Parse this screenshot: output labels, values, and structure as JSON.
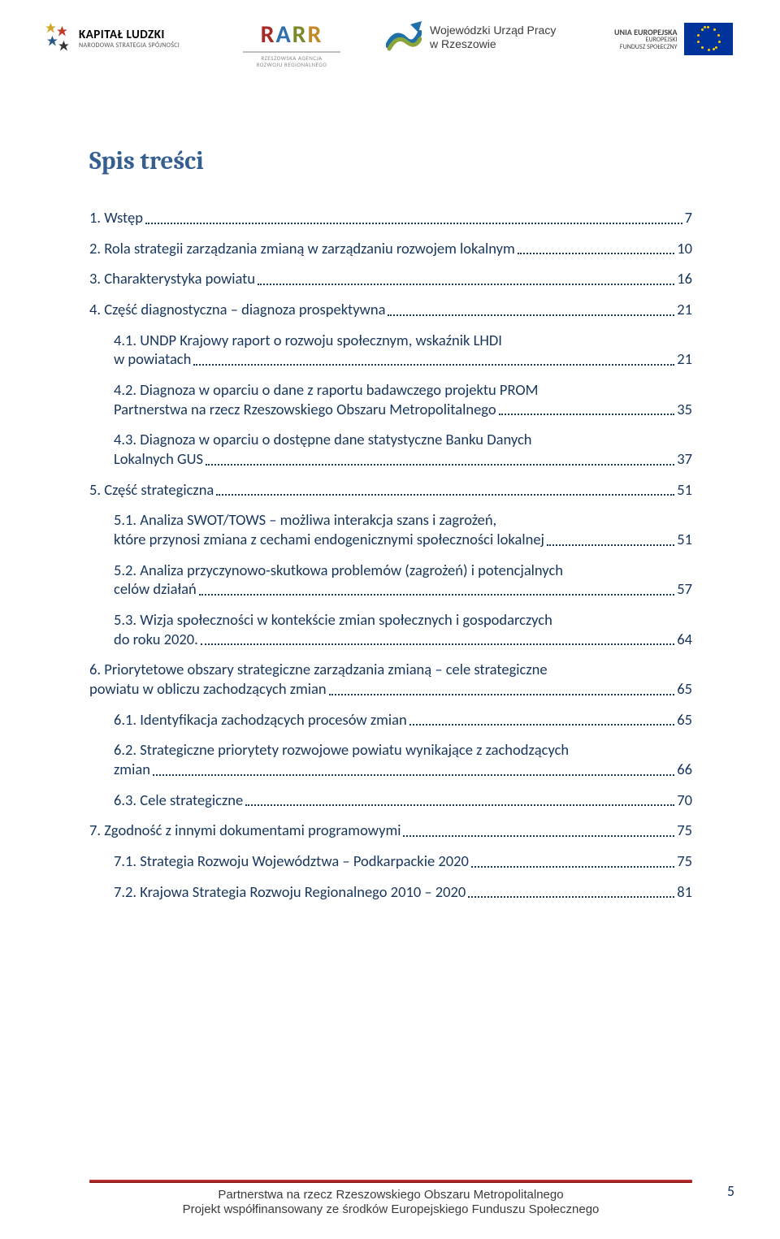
{
  "header": {
    "kapitalLudzki": {
      "line1": "KAPITAŁ LUDZKI",
      "line2": "NARODOWA STRATEGIA SPÓJNOŚCI"
    },
    "rarr": {
      "mark": "RARR",
      "sub1": "RZESZOWSKA AGENCJA",
      "sub2": "ROZWOJU REGIONALNEGO"
    },
    "wup": {
      "line1": "Wojewódzki Urząd Pracy",
      "line2": "w Rzeszowie"
    },
    "eu": {
      "line1": "UNIA EUROPEJSKA",
      "line2": "EUROPEJSKI",
      "line3": "FUNDUSZ SPOŁECZNY"
    }
  },
  "title": "Spis treści",
  "toc": [
    {
      "type": "single",
      "level": 0,
      "text": "1.   Wstęp",
      "page": "7"
    },
    {
      "type": "single",
      "level": 0,
      "text": "2.   Rola strategii zarządzania zmianą w zarządzaniu rozwojem lokalnym",
      "page": "10"
    },
    {
      "type": "single",
      "level": 0,
      "text": "3.   Charakterystyka powiatu",
      "page": "16"
    },
    {
      "type": "single",
      "level": 0,
      "text": "4.   Część diagnostyczna – diagnoza prospektywna",
      "page": "21"
    },
    {
      "type": "multi",
      "level": 1,
      "line1": "4.1.   UNDP Krajowy raport o rozwoju społecznym, wskaźnik LHDI",
      "line2": "w powiatach",
      "page": "21"
    },
    {
      "type": "multi",
      "level": 1,
      "line1": "4.2.   Diagnoza w oparciu o dane z raportu badawczego projektu PROM",
      "line2": "Partnerstwa na rzecz Rzeszowskiego Obszaru Metropolitalnego",
      "page": "35"
    },
    {
      "type": "multi",
      "level": 1,
      "line1": "4.3.   Diagnoza w oparciu o dostępne dane statystyczne Banku Danych",
      "line2": "Lokalnych GUS",
      "page": "37"
    },
    {
      "type": "single",
      "level": 0,
      "text": "5.   Część strategiczna",
      "page": "51"
    },
    {
      "type": "multi",
      "level": 1,
      "line1": "5.1.   Analiza SWOT/TOWS – możliwa interakcja szans  i zagrożeń,",
      "line2": "które przynosi zmiana z cechami endogenicznymi społeczności lokalnej",
      "page": "51"
    },
    {
      "type": "multi",
      "level": 1,
      "line1": "5.2.   Analiza przyczynowo-skutkowa problemów (zagrożeń) i potencjalnych",
      "line2": "celów działań",
      "page": "57"
    },
    {
      "type": "multi",
      "level": 1,
      "line1": "5.3.   Wizja społeczności w kontekście zmian społecznych i gospodarczych",
      "line2": "do roku 2020.",
      "page": "64"
    },
    {
      "type": "multi",
      "level": 0,
      "line1": "6.   Priorytetowe obszary strategiczne zarządzania zmianą – cele strategiczne",
      "line2": "powiatu w obliczu zachodzących zmian",
      "page": "65"
    },
    {
      "type": "single",
      "level": 1,
      "text": "6.1.   Identyfikacja zachodzących procesów zmian",
      "page": "65"
    },
    {
      "type": "multi",
      "level": 1,
      "line1": "6.2.   Strategiczne priorytety rozwojowe powiatu wynikające  z zachodzących",
      "line2": "zmian   ",
      "page": "66"
    },
    {
      "type": "single",
      "level": 1,
      "text": "6.3.   Cele strategiczne",
      "page": "70"
    },
    {
      "type": "single",
      "level": 0,
      "text": "7.   Zgodność z innymi dokumentami programowymi",
      "page": "75"
    },
    {
      "type": "single",
      "level": 1,
      "text": "7.1.   Strategia Rozwoju Województwa – Podkarpackie 2020",
      "page": "75"
    },
    {
      "type": "single",
      "level": 1,
      "text": "7.2.   Krajowa Strategia Rozwoju Regionalnego 2010 – 2020",
      "page": "81"
    }
  ],
  "footer": {
    "line1": "Partnerstwa na rzecz Rzeszowskiego Obszaru Metropolitalnego",
    "line2": "Projekt współfinansowany ze środków Europejskiego Funduszu Społecznego"
  },
  "pageNumber": "5",
  "colors": {
    "heading": "#365f91",
    "tocText": "#17365d",
    "footerBar": "#a22222"
  }
}
